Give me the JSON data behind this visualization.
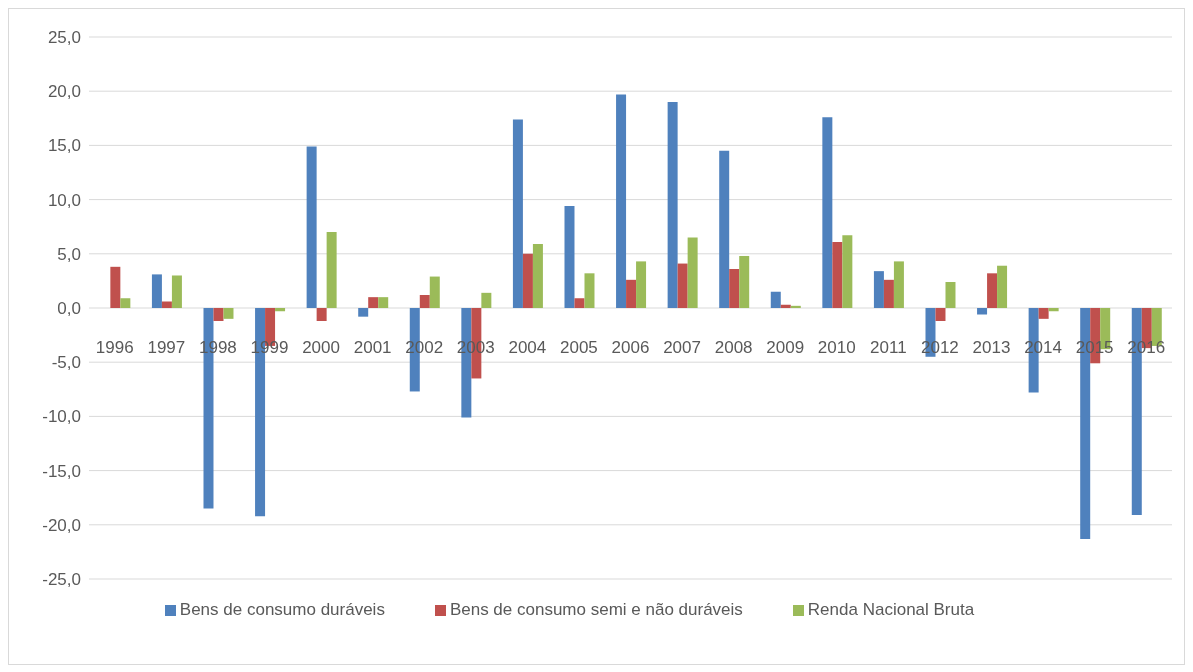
{
  "chart_data": {
    "type": "bar",
    "categories": [
      "1996",
      "1997",
      "1998",
      "1999",
      "2000",
      "2001",
      "2002",
      "2003",
      "2004",
      "2005",
      "2006",
      "2007",
      "2008",
      "2009",
      "2010",
      "2011",
      "2012",
      "2013",
      "2014",
      "2015",
      "2016"
    ],
    "series": [
      {
        "name": "Bens de consumo duráveis",
        "color": "#4f81bd",
        "values": [
          0,
          3.1,
          -18.5,
          -19.2,
          14.9,
          -0.8,
          -7.7,
          -10.1,
          17.4,
          9.4,
          19.7,
          19.0,
          14.5,
          1.5,
          17.6,
          3.4,
          -4.5,
          -0.6,
          -7.8,
          -21.3,
          -19.1
        ]
      },
      {
        "name": "Bens de consumo semi e não duráveis",
        "color": "#c0504d",
        "values": [
          3.8,
          0.6,
          -1.2,
          -3.5,
          -1.2,
          1.0,
          1.2,
          -6.5,
          5.0,
          0.9,
          2.6,
          4.1,
          3.6,
          0.3,
          6.1,
          2.6,
          -1.2,
          3.2,
          -1.0,
          -5.1,
          -3.7
        ]
      },
      {
        "name": "Renda Nacional Bruta",
        "color": "#9bbb59",
        "values": [
          0.9,
          3.0,
          -1.0,
          -0.3,
          7.0,
          1.0,
          2.9,
          1.4,
          5.9,
          3.2,
          4.3,
          6.5,
          4.8,
          0.2,
          6.7,
          4.3,
          2.4,
          3.9,
          -0.3,
          -3.8,
          -3.5
        ]
      }
    ],
    "ylim": [
      -25,
      25
    ],
    "yticks": [
      {
        "value": -25,
        "label": "-25,0"
      },
      {
        "value": -20,
        "label": "-20,0"
      },
      {
        "value": -15,
        "label": "-15,0"
      },
      {
        "value": -10,
        "label": "-10,0"
      },
      {
        "value": -5,
        "label": "-5,0"
      },
      {
        "value": 0,
        "label": "0,0"
      },
      {
        "value": 5,
        "label": "5,0"
      },
      {
        "value": 10,
        "label": "10,0"
      },
      {
        "value": 15,
        "label": "15,0"
      },
      {
        "value": 20,
        "label": "20,0"
      },
      {
        "value": 25,
        "label": "25,0"
      }
    ],
    "grid": "y",
    "legend": "bottom"
  }
}
